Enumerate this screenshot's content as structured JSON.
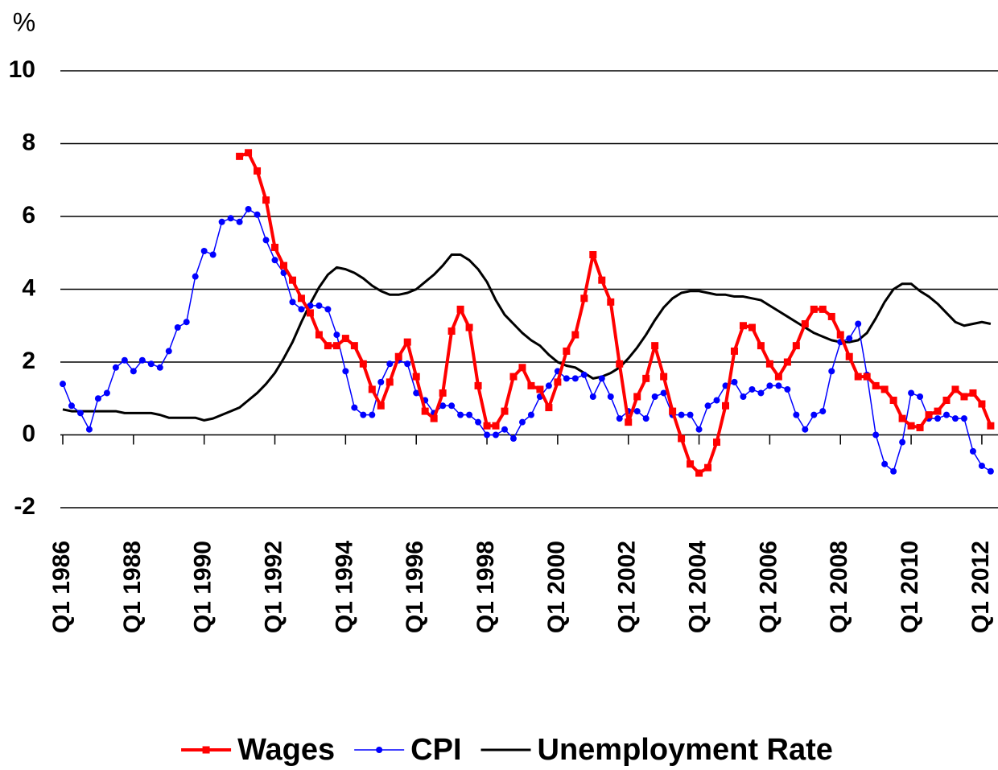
{
  "chart_data": {
    "type": "line",
    "y_label": "%",
    "categories": [
      "Q1 1986",
      null,
      null,
      null,
      null,
      null,
      null,
      null,
      "Q1 1988",
      null,
      null,
      null,
      null,
      null,
      null,
      null,
      "Q1 1990",
      null,
      null,
      null,
      null,
      null,
      null,
      null,
      "Q1 1992",
      null,
      null,
      null,
      null,
      null,
      null,
      null,
      "Q1 1994",
      null,
      null,
      null,
      null,
      null,
      null,
      null,
      "Q1 1996",
      null,
      null,
      null,
      null,
      null,
      null,
      null,
      "Q1 1998",
      null,
      null,
      null,
      null,
      null,
      null,
      null,
      "Q1 2000",
      null,
      null,
      null,
      null,
      null,
      null,
      null,
      "Q1 2002",
      null,
      null,
      null,
      null,
      null,
      null,
      null,
      "Q1 2004",
      null,
      null,
      null,
      null,
      null,
      null,
      null,
      "Q1 2006",
      null,
      null,
      null,
      null,
      null,
      null,
      null,
      "Q1 2008",
      null,
      null,
      null,
      null,
      null,
      null,
      null,
      "Q1 2010",
      null,
      null,
      null,
      null,
      null,
      null,
      null,
      "Q1 2012",
      null
    ],
    "series": [
      {
        "name": "Wages",
        "color": "#ff0000",
        "marker": "square",
        "values": [
          null,
          null,
          null,
          null,
          null,
          null,
          null,
          null,
          null,
          null,
          null,
          null,
          null,
          null,
          null,
          null,
          null,
          null,
          null,
          null,
          7.65,
          7.75,
          7.25,
          6.45,
          5.15,
          4.65,
          4.25,
          3.75,
          3.35,
          2.75,
          2.45,
          2.45,
          2.65,
          2.45,
          1.95,
          1.25,
          0.8,
          1.45,
          2.15,
          2.55,
          1.6,
          0.65,
          0.45,
          1.15,
          2.85,
          3.45,
          2.95,
          1.35,
          0.25,
          0.25,
          0.65,
          1.6,
          1.85,
          1.35,
          1.25,
          0.75,
          1.45,
          2.3,
          2.75,
          3.75,
          4.95,
          4.25,
          3.65,
          1.95,
          0.35,
          1.05,
          1.55,
          2.45,
          1.6,
          0.65,
          -0.1,
          -0.8,
          -1.05,
          -0.9,
          -0.2,
          0.8,
          2.3,
          3.0,
          2.95,
          2.45,
          1.95,
          1.6,
          2.0,
          2.45,
          3.05,
          3.45,
          3.45,
          3.25,
          2.75,
          2.15,
          1.6,
          1.6,
          1.35,
          1.25,
          0.95,
          0.45,
          0.25,
          0.2,
          0.55,
          0.65,
          0.95,
          1.25,
          1.05,
          1.15,
          0.85,
          0.25
        ]
      },
      {
        "name": "CPI",
        "color": "#0000ff",
        "marker": "circle",
        "values": [
          1.4,
          0.8,
          0.6,
          0.15,
          1.0,
          1.15,
          1.85,
          2.05,
          1.75,
          2.05,
          1.95,
          1.85,
          2.3,
          2.95,
          3.1,
          4.35,
          5.05,
          4.95,
          5.85,
          5.95,
          5.85,
          6.2,
          6.05,
          5.35,
          4.8,
          4.45,
          3.65,
          3.45,
          3.55,
          3.55,
          3.45,
          2.75,
          1.75,
          0.75,
          0.55,
          0.55,
          1.45,
          1.95,
          2.05,
          1.95,
          1.15,
          0.95,
          0.6,
          0.8,
          0.8,
          0.55,
          0.55,
          0.35,
          0.0,
          0.0,
          0.15,
          -0.1,
          0.35,
          0.55,
          1.05,
          1.35,
          1.75,
          1.55,
          1.55,
          1.65,
          1.05,
          1.55,
          1.05,
          0.45,
          0.65,
          0.65,
          0.45,
          1.05,
          1.15,
          0.55,
          0.55,
          0.55,
          0.15,
          0.8,
          0.95,
          1.35,
          1.45,
          1.05,
          1.25,
          1.15,
          1.35,
          1.35,
          1.25,
          0.55,
          0.15,
          0.55,
          0.65,
          1.75,
          2.55,
          2.65,
          3.05,
          1.65,
          0.0,
          -0.8,
          -1.0,
          -0.2,
          1.15,
          1.05,
          0.45,
          0.45,
          0.55,
          0.45,
          0.45,
          -0.45,
          -0.85,
          -1.0
        ]
      },
      {
        "name": "Unemployment Rate",
        "color": "#000000",
        "marker": "none",
        "values": [
          0.7,
          0.65,
          0.65,
          0.65,
          0.65,
          0.65,
          0.65,
          0.6,
          0.6,
          0.6,
          0.6,
          0.55,
          0.47,
          0.47,
          0.47,
          0.47,
          0.4,
          0.45,
          0.55,
          0.65,
          0.75,
          0.95,
          1.15,
          1.4,
          1.7,
          2.1,
          2.55,
          3.1,
          3.6,
          4.05,
          4.4,
          4.6,
          4.55,
          4.45,
          4.3,
          4.1,
          3.95,
          3.85,
          3.85,
          3.9,
          4.0,
          4.2,
          4.4,
          4.65,
          4.95,
          4.95,
          4.8,
          4.55,
          4.2,
          3.7,
          3.3,
          3.05,
          2.8,
          2.6,
          2.45,
          2.2,
          2.0,
          1.9,
          1.85,
          1.7,
          1.55,
          1.6,
          1.7,
          1.85,
          2.1,
          2.4,
          2.75,
          3.15,
          3.5,
          3.75,
          3.9,
          3.95,
          3.95,
          3.9,
          3.85,
          3.85,
          3.8,
          3.8,
          3.75,
          3.7,
          3.55,
          3.4,
          3.25,
          3.1,
          2.95,
          2.8,
          2.7,
          2.6,
          2.55,
          2.55,
          2.6,
          2.8,
          3.2,
          3.65,
          4.0,
          4.15,
          4.15,
          3.95,
          3.8,
          3.6,
          3.35,
          3.1,
          3.0,
          3.05,
          3.1,
          3.05
        ]
      }
    ],
    "ylim": [
      -2,
      10
    ],
    "yticks": [
      -2,
      0,
      2,
      4,
      6,
      8,
      10
    ],
    "grid": true
  }
}
